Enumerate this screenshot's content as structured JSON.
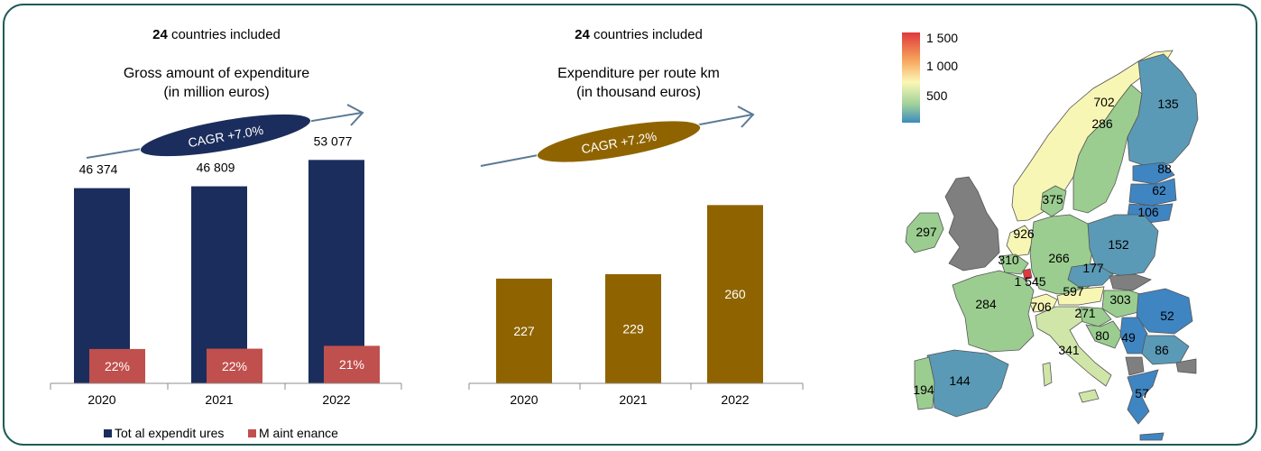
{
  "left_panel": {
    "header_bold": "24",
    "header_rest": " countries included",
    "title_line1": "Gross amount of expenditure",
    "title_line2": "(in million euros)",
    "cagr_label": "CAGR +7.0%"
  },
  "middle_panel": {
    "header_bold": "24",
    "header_rest": " countries included",
    "title_line1": "Expenditure per route km",
    "title_line2": "(in thousand euros)",
    "cagr_label": "CAGR +7.2%"
  },
  "map_panel": {
    "legend_labels": [
      "1 500",
      "1 000",
      "500"
    ],
    "country_values": [
      "702",
      "286",
      "135",
      "88",
      "62",
      "106",
      "375",
      "297",
      "926",
      "152",
      "310",
      "266",
      "177",
      "1 545",
      "597",
      "303",
      "284",
      "706",
      "271",
      "52",
      "80",
      "49",
      "86",
      "341",
      "194",
      "144",
      "57"
    ]
  },
  "colors": {
    "frame": "#1f5b57",
    "total_bar": "#1b2d5c",
    "maintenance_bar": "#c0504d",
    "per_km_bar": "#8f6400",
    "map_grey": "#7f7f7f"
  },
  "chart_data": [
    {
      "type": "bar",
      "categories": [
        "2020",
        "2021",
        "2022"
      ],
      "series": [
        {
          "name": "Total expenditures",
          "values": [
            46374,
            46809,
            53077
          ],
          "labels": [
            "46 374",
            "46 809",
            "53 077"
          ]
        },
        {
          "name": "Maintenance",
          "values": [
            22,
            22,
            21
          ],
          "labels": [
            "22%",
            "22%",
            "21%"
          ],
          "unit": "% of total"
        }
      ],
      "legend": [
        "Total expenditures",
        "Maintenance"
      ],
      "legend_display": [
        "Tot al expendit ures",
        "M aint enance"
      ],
      "ylim": [
        0,
        60000
      ]
    },
    {
      "type": "bar",
      "categories": [
        "2020",
        "2021",
        "2022"
      ],
      "values": [
        227,
        229,
        260
      ],
      "labels": [
        "227",
        "229",
        "260"
      ],
      "ylim": [
        180,
        265
      ]
    }
  ]
}
